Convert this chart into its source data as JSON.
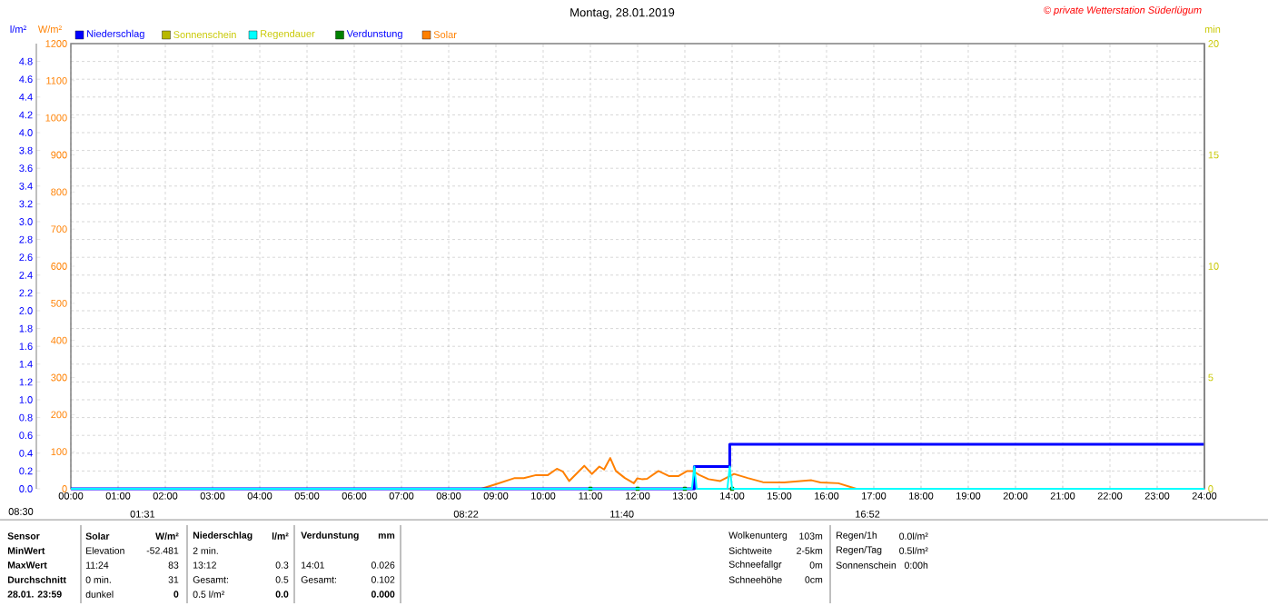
{
  "chart_data": {
    "type": "line",
    "title": "Montag, 28.01.2019",
    "xlim": [
      0,
      24
    ],
    "xticks": [
      {
        "value": 0,
        "label": "00:00"
      },
      {
        "value": 1,
        "label": "01:00"
      },
      {
        "value": 2,
        "label": "02:00"
      },
      {
        "value": 3,
        "label": "03:00"
      },
      {
        "value": 4,
        "label": "04:00"
      },
      {
        "value": 5,
        "label": "05:00"
      },
      {
        "value": 6,
        "label": "06:00"
      },
      {
        "value": 7,
        "label": "07:00"
      },
      {
        "value": 8,
        "label": "08:00"
      },
      {
        "value": 9,
        "label": "09:00"
      },
      {
        "value": 10,
        "label": "10:00"
      },
      {
        "value": 11,
        "label": "11:00"
      },
      {
        "value": 12,
        "label": "12:00"
      },
      {
        "value": 13,
        "label": "13:00"
      },
      {
        "value": 14,
        "label": "14:00"
      },
      {
        "value": 15,
        "label": "15:00"
      },
      {
        "value": 16,
        "label": "16:00"
      },
      {
        "value": 17,
        "label": "17:00"
      },
      {
        "value": 18,
        "label": "18:00"
      },
      {
        "value": 19,
        "label": "19:00"
      },
      {
        "value": 20,
        "label": "20:00"
      },
      {
        "value": 21,
        "label": "21:00"
      },
      {
        "value": 22,
        "label": "22:00"
      },
      {
        "value": 23,
        "label": "23:00"
      },
      {
        "value": 24,
        "label": "24:00"
      }
    ],
    "ylabel": "W/m²",
    "ylim": [
      0,
      1200
    ],
    "yticks": [
      0,
      100,
      200,
      300,
      400,
      500,
      600,
      700,
      800,
      900,
      1000,
      1100,
      1200
    ],
    "y2label": "min",
    "y2lim": [
      0,
      20
    ],
    "y2ticks": [
      0,
      5,
      10,
      15,
      20
    ],
    "y3label": "l/m²",
    "y3lim": [
      0,
      5
    ],
    "y3ticks": [
      {
        "value": 0,
        "label": "0.0"
      },
      0.2,
      0.4,
      0.6,
      0.8,
      {
        "value": 1,
        "label": "1.0"
      },
      1.2,
      1.4,
      1.6,
      1.8,
      {
        "value": 2,
        "label": "2.0"
      },
      2.2,
      2.4,
      2.6,
      2.8,
      {
        "value": 3,
        "label": "3.0"
      },
      3.2,
      3.4,
      3.6,
      3.8,
      {
        "value": 4,
        "label": "4.0"
      },
      4.2,
      4.4,
      4.6,
      4.8
    ],
    "grid": true,
    "legend": "top left",
    "series": [
      {
        "name": "Niederschlag",
        "type": "step",
        "axis": "y3",
        "color": "#0000ff",
        "x": [
          0,
          13.2,
          13.95,
          24
        ],
        "values": [
          0,
          0.25,
          0.5,
          0.5
        ]
      },
      {
        "name": "Sonnenschein",
        "axis": "y2",
        "color": "#b8b800"
      },
      {
        "name": "Regendauer",
        "axis": "y2",
        "color": "#00ffff",
        "x": [
          0,
          13.15,
          13.2,
          13.25,
          13.9,
          13.95,
          14.0,
          24
        ],
        "values": [
          0,
          0,
          1,
          0,
          0,
          1,
          0,
          0
        ]
      },
      {
        "name": "Verdunstung",
        "type": "scatter",
        "axis": "y3",
        "marker": "square",
        "color": "#008000",
        "x": [
          11,
          12,
          13,
          14
        ],
        "values": [
          0,
          0,
          0,
          0
        ]
      },
      {
        "name": "Solar",
        "color": "#ff8000",
        "x": [
          8.69,
          9.01,
          9.4,
          9.59,
          9.85,
          10.1,
          10.29,
          10.42,
          10.55,
          10.87,
          11.03,
          11.19,
          11.29,
          11.42,
          11.54,
          11.73,
          11.92,
          11.99,
          12.09,
          12.2,
          12.44,
          12.67,
          12.86,
          13.05,
          13.17,
          13.31,
          13.5,
          13.75,
          14.04,
          14.33,
          14.65,
          15.1,
          15.68,
          15.87,
          16.25,
          16.63
        ],
        "values": [
          0,
          13,
          29,
          29,
          37,
          37,
          54,
          46,
          21,
          62,
          40,
          60,
          52,
          83,
          48,
          29,
          15,
          28,
          26,
          27,
          48,
          34,
          34,
          48,
          48,
          37,
          26,
          21,
          40,
          29,
          18,
          17,
          23,
          17,
          15,
          0
        ]
      }
    ],
    "annotations": [
      "© private Wetterstation Süderlügum",
      "08:30",
      {
        "text": "01:31",
        "x": 1.517,
        "y": 0
      },
      {
        "text": "08:22",
        "x": 8.367,
        "y": 0
      },
      {
        "text": "11:40",
        "x": 11.667,
        "y": 0
      },
      {
        "text": "16:52",
        "x": 16.867,
        "y": 0
      },
      "Sensor",
      "MinWert",
      "MaxWert",
      "Durchschnitt",
      "28.01. 23:59",
      "Solar",
      "Elevation",
      "11:24",
      "0 min.",
      "dunkel",
      "W/m²",
      "-52.481",
      "83",
      "31",
      "0",
      "Niederschlag",
      "2 min.",
      "13:12",
      "Gesamt:",
      "0.5 l/m²",
      "l/m²",
      "0.3",
      "0.5",
      "0.0",
      "Verdunstung",
      "14:01",
      "Gesamt:",
      "mm",
      "0.026",
      "0.102",
      "0.000",
      "Wolkenunterg",
      "Sichtweite",
      "Schneefallgr",
      "Schneehöhe",
      "103m",
      "2-5km",
      "0m",
      "0cm",
      "Regen/1h",
      "Regen/Tag",
      "Sonnenschein",
      "0.0l/m²",
      "0.5l/m²",
      "0:00h"
    ]
  }
}
